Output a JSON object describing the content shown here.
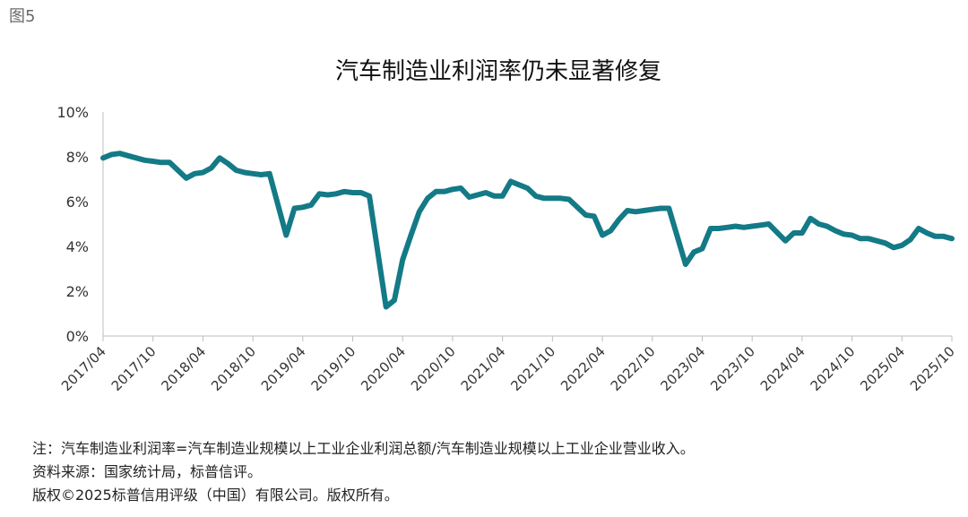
{
  "figure_label": "图5",
  "chart_data": {
    "type": "line",
    "title": "汽车制造业利润率仍未显著修复",
    "xlabel": "",
    "ylabel": "",
    "ylim": [
      0,
      10
    ],
    "yticks": [
      "0%",
      "2%",
      "4%",
      "6%",
      "8%",
      "10%"
    ],
    "xlim": [
      "2017/04",
      "2025/10"
    ],
    "xticks": [
      "2017/04",
      "2017/10",
      "2018/04",
      "2018/10",
      "2019/04",
      "2019/10",
      "2020/04",
      "2020/10",
      "2021/04",
      "2021/10",
      "2022/04",
      "2022/10",
      "2023/04",
      "2023/10",
      "2024/04",
      "2024/10",
      "2025/04",
      "2025/10"
    ],
    "grid": false,
    "line_color": "#137a86",
    "series": [
      {
        "name": "",
        "x": [
          "2017/04",
          "2017/05",
          "2017/06",
          "2017/07",
          "2017/08",
          "2017/09",
          "2017/10",
          "2017/11",
          "2017/12",
          "2018/02",
          "2018/03",
          "2018/04",
          "2018/05",
          "2018/06",
          "2018/07",
          "2018/08",
          "2018/09",
          "2018/10",
          "2018/11",
          "2018/12",
          "2019/02",
          "2019/03",
          "2019/04",
          "2019/05",
          "2019/06",
          "2019/07",
          "2019/08",
          "2019/09",
          "2019/10",
          "2019/11",
          "2019/12",
          "2020/02",
          "2020/03",
          "2020/04",
          "2020/05",
          "2020/06",
          "2020/07",
          "2020/08",
          "2020/09",
          "2020/10",
          "2020/11",
          "2020/12",
          "2021/02",
          "2021/03",
          "2021/04",
          "2021/05",
          "2021/06",
          "2021/07",
          "2021/08",
          "2021/09",
          "2021/10",
          "2021/11",
          "2021/12",
          "2022/02",
          "2022/03",
          "2022/04",
          "2022/05",
          "2022/06",
          "2022/07",
          "2022/08",
          "2022/09",
          "2022/10",
          "2022/11",
          "2022/12",
          "2023/02",
          "2023/03",
          "2023/04",
          "2023/05",
          "2023/06",
          "2023/07",
          "2023/08",
          "2023/09",
          "2023/10",
          "2023/11",
          "2023/12",
          "2024/02",
          "2024/03",
          "2024/04",
          "2024/05",
          "2024/06",
          "2024/07",
          "2024/08",
          "2024/09",
          "2024/10",
          "2024/11",
          "2024/12",
          "2025/02",
          "2025/03",
          "2025/04",
          "2025/05",
          "2025/06",
          "2025/07",
          "2025/08",
          "2025/09",
          "2025/10"
        ],
        "values": [
          7.95,
          8.1,
          8.15,
          8.05,
          7.95,
          7.85,
          7.8,
          7.75,
          7.75,
          7.05,
          7.25,
          7.3,
          7.5,
          7.95,
          7.7,
          7.4,
          7.3,
          7.25,
          7.2,
          7.25,
          4.5,
          5.7,
          5.75,
          5.85,
          6.35,
          6.3,
          6.35,
          6.45,
          6.4,
          6.4,
          6.25,
          1.3,
          1.6,
          3.4,
          4.5,
          5.55,
          6.15,
          6.45,
          6.45,
          6.55,
          6.6,
          6.2,
          6.4,
          6.25,
          6.25,
          6.9,
          6.75,
          6.6,
          6.25,
          6.15,
          6.15,
          6.15,
          6.1,
          5.4,
          5.35,
          4.5,
          4.7,
          5.2,
          5.6,
          5.55,
          5.6,
          5.65,
          5.7,
          5.7,
          3.2,
          3.75,
          3.9,
          4.8,
          4.8,
          4.85,
          4.9,
          4.85,
          4.9,
          4.95,
          5.0,
          4.25,
          4.6,
          4.6,
          5.25,
          5.0,
          4.9,
          4.7,
          4.55,
          4.5,
          4.35,
          4.35,
          4.15,
          3.95,
          4.05,
          4.3,
          4.8,
          4.6,
          4.45,
          4.45,
          4.35
        ]
      }
    ]
  },
  "notes": [
    "注：汽车制造业利润率=汽车制造业规模以上工业企业利润总额/汽车制造业规模以上工业企业营业收入。",
    "资料来源：国家统计局，标普信评。",
    "版权©2025标普信用评级（中国）有限公司。版权所有。"
  ]
}
